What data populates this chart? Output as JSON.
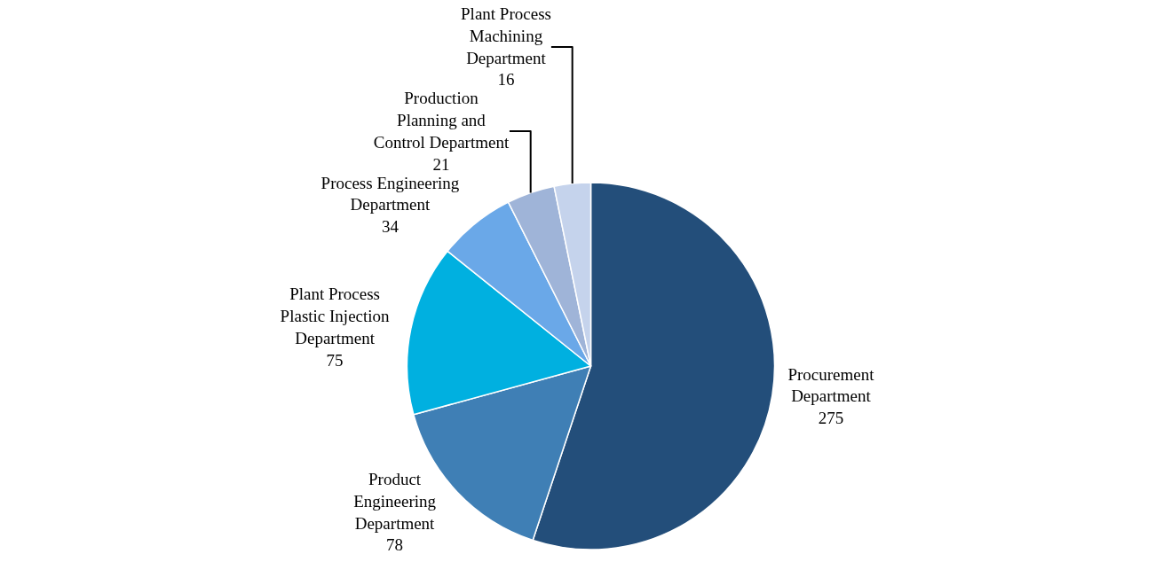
{
  "chart_data": {
    "type": "pie",
    "categories": [
      "Procurement\nDepartment",
      "Product\nEngineering\nDepartment",
      "Plant Process\nPlastic Injection\nDepartment",
      "Process Engineering\nDepartment",
      "Production\nPlanning and\nControl Department",
      "Plant Process\nMachining\nDepartment"
    ],
    "values": [
      275,
      78,
      75,
      34,
      21,
      16
    ],
    "colors": [
      "#234e7a",
      "#3f7fb5",
      "#00b0e0",
      "#6aa8e8",
      "#9fb4d8",
      "#c5d3ec"
    ],
    "data_labels": true,
    "legend": false
  }
}
